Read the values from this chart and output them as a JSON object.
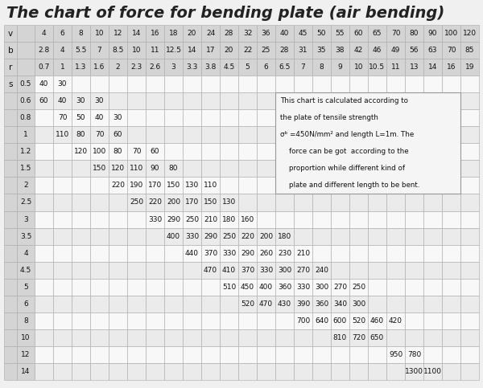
{
  "title": "The chart of force for bending plate (air bending)",
  "col_headers": {
    "v": [
      "4",
      "6",
      "8",
      "10",
      "12",
      "14",
      "16",
      "18",
      "20",
      "24",
      "28",
      "32",
      "36",
      "40",
      "45",
      "50",
      "55",
      "60",
      "65",
      "70",
      "80",
      "90",
      "100",
      "120"
    ],
    "b": [
      "2.8",
      "4",
      "5.5",
      "7",
      "8.5",
      "10",
      "11",
      "12.5",
      "14",
      "17",
      "20",
      "22",
      "25",
      "28",
      "31",
      "35",
      "38",
      "42",
      "46",
      "49",
      "56",
      "63",
      "70",
      "85"
    ],
    "r": [
      "0.7",
      "1",
      "1.3",
      "1.6",
      "2",
      "2.3",
      "2.6",
      "3",
      "3.3",
      "3.8",
      "4.5",
      "5",
      "6",
      "6.5",
      "7",
      "8",
      "9",
      "10",
      "10.5",
      "11",
      "13",
      "14",
      "16",
      "19"
    ]
  },
  "row_labels_s": [
    "0.5",
    "0.6",
    "0.8",
    "1",
    "1.2",
    "1.5",
    "2",
    "2.5",
    "3",
    "3.5",
    "4",
    "4.5",
    "5",
    "6",
    "8",
    "10",
    "12",
    "14"
  ],
  "table_data": {
    "0.5": [
      "40",
      "30",
      "",
      "",
      "",
      "",
      "",
      "",
      "",
      "",
      "",
      "",
      "",
      "",
      "",
      "",
      "",
      "",
      "",
      "",
      "",
      "",
      "",
      ""
    ],
    "0.6": [
      "60",
      "40",
      "30",
      "30",
      "",
      "",
      "",
      "",
      "",
      "",
      "",
      "",
      "",
      "",
      "",
      "",
      "",
      "",
      "",
      "",
      "",
      "",
      "",
      ""
    ],
    "0.8": [
      "",
      "70",
      "50",
      "40",
      "30",
      "",
      "",
      "",
      "",
      "",
      "",
      "",
      "",
      "",
      "",
      "",
      "",
      "",
      "",
      "",
      "",
      "",
      "",
      ""
    ],
    "1": [
      "",
      "110",
      "80",
      "70",
      "60",
      "",
      "",
      "",
      "",
      "",
      "",
      "",
      "",
      "",
      "",
      "",
      "",
      "",
      "",
      "",
      "",
      "",
      "",
      ""
    ],
    "1.2": [
      "",
      "",
      "120",
      "100",
      "80",
      "70",
      "60",
      "",
      "",
      "",
      "",
      "",
      "",
      "",
      "",
      "",
      "",
      "",
      "",
      "",
      "",
      "",
      "",
      ""
    ],
    "1.5": [
      "",
      "",
      "",
      "150",
      "120",
      "110",
      "90",
      "80",
      "",
      "",
      "",
      "",
      "",
      "",
      "",
      "",
      "",
      "",
      "",
      "",
      "",
      "",
      "",
      ""
    ],
    "2": [
      "",
      "",
      "",
      "",
      "220",
      "190",
      "170",
      "150",
      "130",
      "110",
      "",
      "",
      "",
      "",
      "",
      "",
      "",
      "",
      "",
      "",
      "",
      "",
      "",
      ""
    ],
    "2.5": [
      "",
      "",
      "",
      "",
      "",
      "250",
      "220",
      "200",
      "170",
      "150",
      "130",
      "",
      "",
      "",
      "",
      "",
      "",
      "",
      "",
      "",
      "",
      "",
      "",
      ""
    ],
    "3": [
      "",
      "",
      "",
      "",
      "",
      "",
      "330",
      "290",
      "250",
      "210",
      "180",
      "160",
      "",
      "",
      "",
      "",
      "",
      "",
      "",
      "",
      "",
      "",
      "",
      ""
    ],
    "3.5": [
      "",
      "",
      "",
      "",
      "",
      "",
      "",
      "400",
      "330",
      "290",
      "250",
      "220",
      "200",
      "180",
      "",
      "",
      "",
      "",
      "",
      "",
      "",
      "",
      "",
      ""
    ],
    "4": [
      "",
      "",
      "",
      "",
      "",
      "",
      "",
      "",
      "440",
      "370",
      "330",
      "290",
      "260",
      "230",
      "210",
      "",
      "",
      "",
      "",
      "",
      "",
      "",
      "",
      ""
    ],
    "4.5": [
      "",
      "",
      "",
      "",
      "",
      "",
      "",
      "",
      "",
      "470",
      "410",
      "370",
      "330",
      "300",
      "270",
      "240",
      "",
      "",
      "",
      "",
      "",
      "",
      "",
      ""
    ],
    "5": [
      "",
      "",
      "",
      "",
      "",
      "",
      "",
      "",
      "",
      "",
      "510",
      "450",
      "400",
      "360",
      "330",
      "300",
      "270",
      "250",
      "",
      "",
      "",
      "",
      "",
      ""
    ],
    "6": [
      "",
      "",
      "",
      "",
      "",
      "",
      "",
      "",
      "",
      "",
      "",
      "520",
      "470",
      "430",
      "390",
      "360",
      "340",
      "300",
      "",
      "",
      "",
      "",
      "",
      ""
    ],
    "8": [
      "",
      "",
      "",
      "",
      "",
      "",
      "",
      "",
      "",
      "",
      "",
      "",
      "",
      "",
      "700",
      "640",
      "600",
      "520",
      "460",
      "420",
      "",
      "",
      "",
      ""
    ],
    "10": [
      "",
      "",
      "",
      "",
      "",
      "",
      "",
      "",
      "",
      "",
      "",
      "",
      "",
      "",
      "",
      "",
      "810",
      "720",
      "650",
      "",
      "",
      "",
      "",
      ""
    ],
    "12": [
      "",
      "",
      "",
      "",
      "",
      "",
      "",
      "",
      "",
      "",
      "",
      "",
      "",
      "",
      "",
      "",
      "",
      "",
      "",
      "950",
      "780",
      "",
      "",
      ""
    ],
    "14": [
      "",
      "",
      "",
      "",
      "",
      "",
      "",
      "",
      "",
      "",
      "",
      "",
      "",
      "",
      "",
      "",
      "",
      "",
      "",
      "",
      "1300",
      "1100",
      "",
      ""
    ]
  },
  "note_lines": [
    "This chart is calculated according to",
    "the plate of tensile strength",
    "σᵇ =450N/mm² and length L=1m. The",
    "    force can be got  according to the",
    "    proportion while different kind of",
    "    plate and different length to be bent."
  ],
  "note_sigma_line": 2,
  "bg_color": "#e8e8e8",
  "header_bg": "#d0d0d0",
  "white_bg": "#ffffff",
  "border_color": "#aaaaaa",
  "title_color": "#444444"
}
